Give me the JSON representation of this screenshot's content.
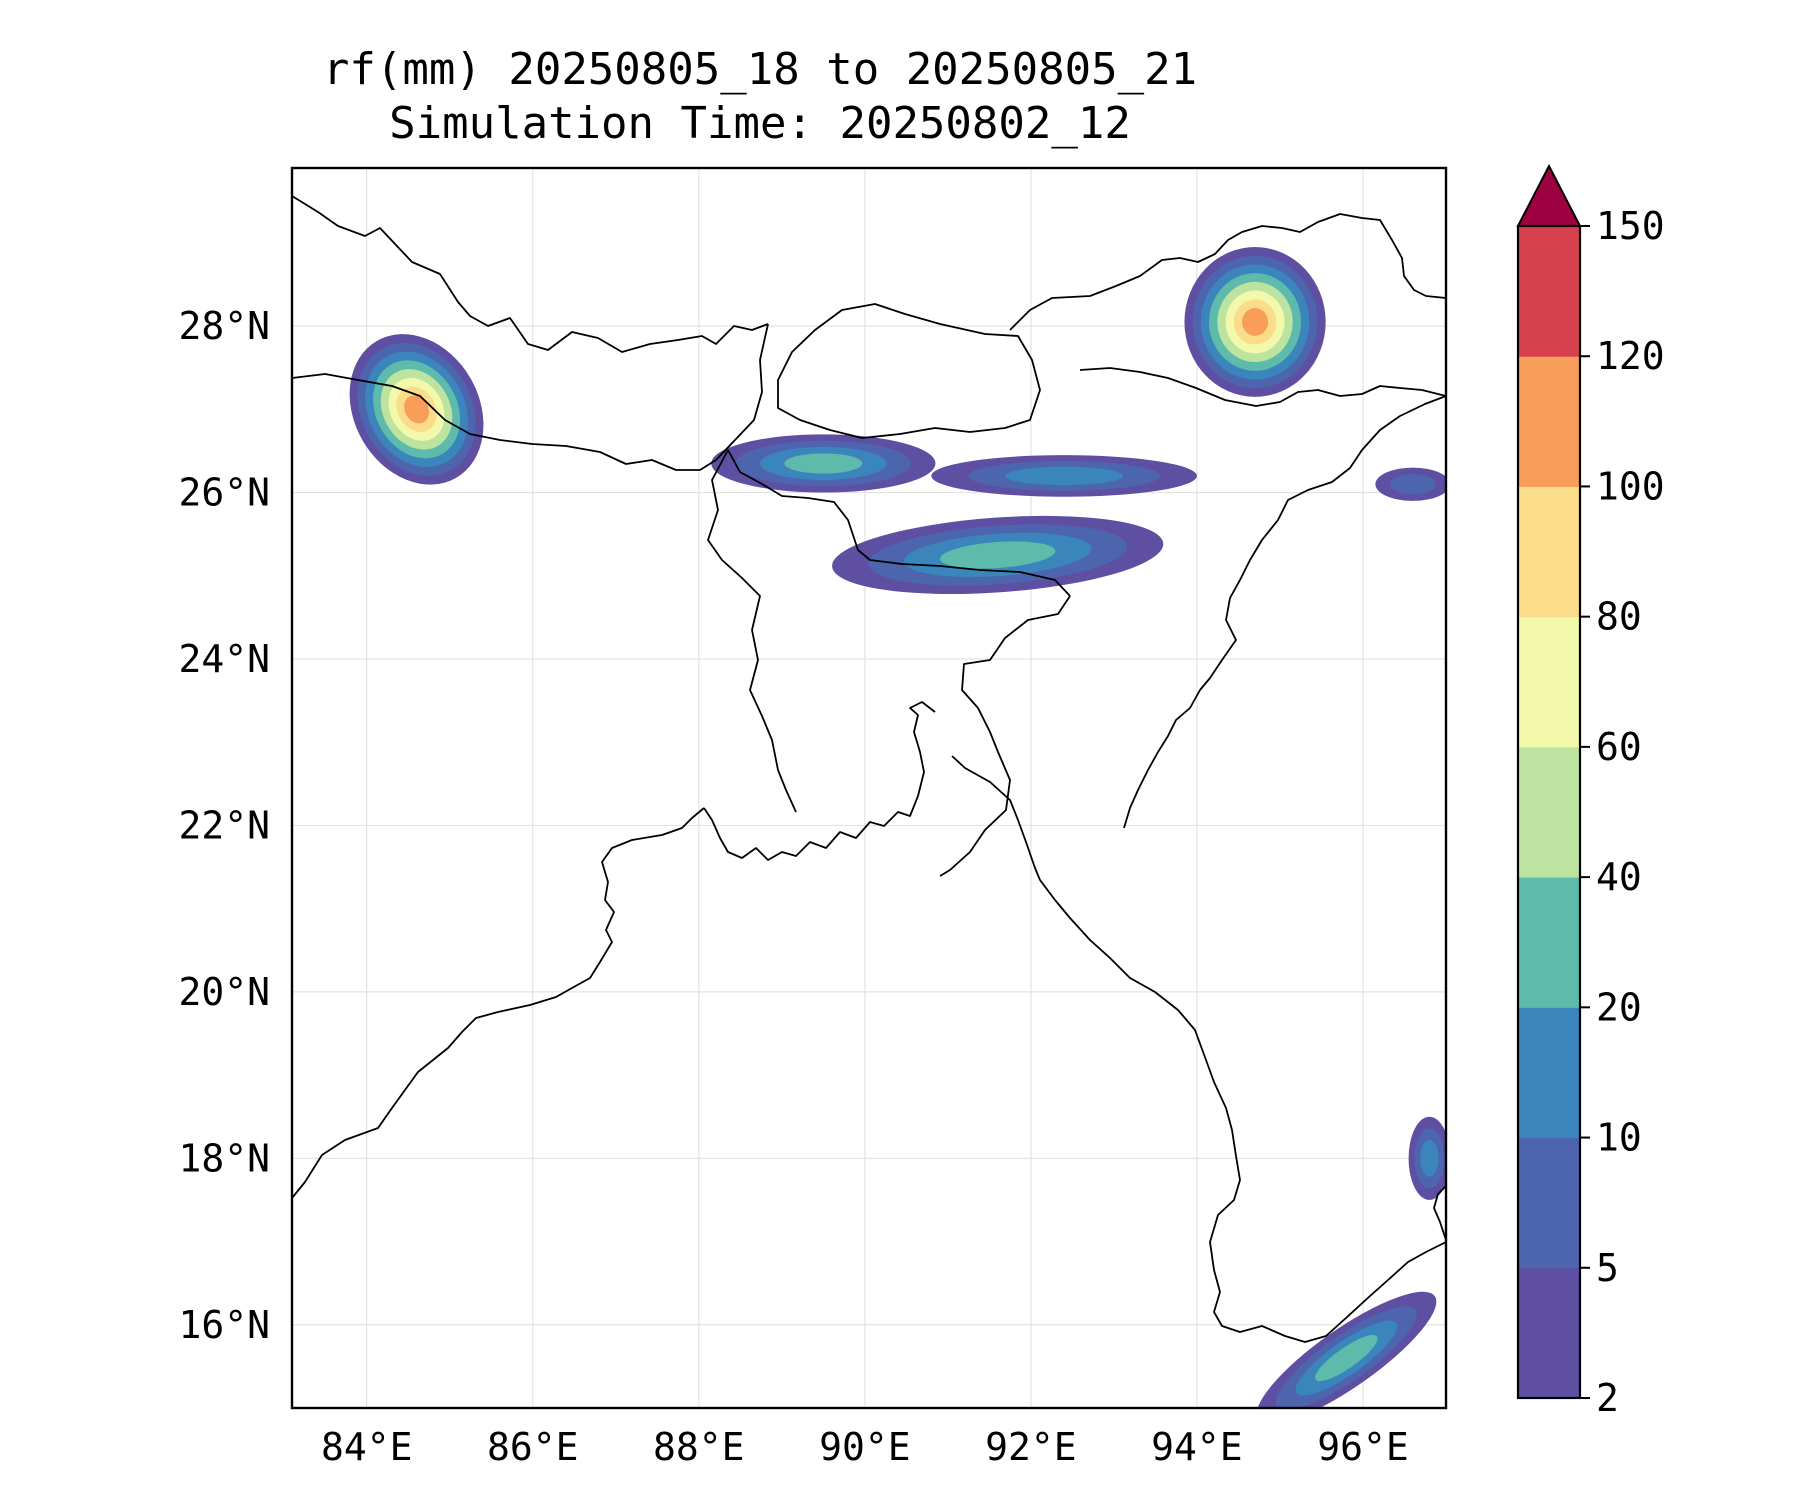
{
  "title": {
    "line1": "rf(mm) 20250805_18 to 20250805_21",
    "line2": "Simulation Time: 20250802_12"
  },
  "map": {
    "lon_range": [
      83.1,
      97.0
    ],
    "lat_range": [
      15.0,
      29.9
    ],
    "gridlines": true,
    "x_ticks": [
      {
        "value": 84,
        "label": "84°E"
      },
      {
        "value": 86,
        "label": "86°E"
      },
      {
        "value": 88,
        "label": "88°E"
      },
      {
        "value": 90,
        "label": "90°E"
      },
      {
        "value": 92,
        "label": "92°E"
      },
      {
        "value": 94,
        "label": "94°E"
      },
      {
        "value": 96,
        "label": "96°E"
      }
    ],
    "y_ticks": [
      {
        "value": 16,
        "label": "16°N"
      },
      {
        "value": 18,
        "label": "18°N"
      },
      {
        "value": 20,
        "label": "20°N"
      },
      {
        "value": 22,
        "label": "22°N"
      },
      {
        "value": 24,
        "label": "24°N"
      },
      {
        "value": 26,
        "label": "26°N"
      },
      {
        "value": 28,
        "label": "28°N"
      }
    ]
  },
  "colorbar": {
    "levels": [
      "2",
      "5",
      "10",
      "20",
      "40",
      "60",
      "80",
      "100",
      "120",
      "150"
    ],
    "colors": [
      "#5e4fa2",
      "#4d65ae",
      "#3a86bc",
      "#5ebaab",
      "#bce3a0",
      "#f3f9ab",
      "#fbdc8a",
      "#f89e5a",
      "#d7404d"
    ],
    "extend_color": "#9e0142",
    "extend": "max"
  },
  "rain_cells": [
    {
      "id": "nepal-west",
      "lon": 84.6,
      "lat": 27.0,
      "rx": 0.75,
      "ry": 0.95,
      "rot": -30,
      "max": 120
    },
    {
      "id": "bhutan-north",
      "lon": 89.5,
      "lat": 26.35,
      "rx": 1.35,
      "ry": 0.35,
      "rot": 0,
      "max": 40
    },
    {
      "id": "meghalaya",
      "lon": 91.6,
      "lat": 25.25,
      "rx": 2.0,
      "ry": 0.45,
      "rot": -4,
      "max": 40
    },
    {
      "id": "assam-band",
      "lon": 92.4,
      "lat": 26.2,
      "rx": 1.6,
      "ry": 0.25,
      "rot": 0,
      "max": 20
    },
    {
      "id": "arunachal",
      "lon": 94.7,
      "lat": 28.05,
      "rx": 0.85,
      "ry": 0.9,
      "rot": 0,
      "max": 120
    },
    {
      "id": "east-border",
      "lon": 96.6,
      "lat": 26.1,
      "rx": 0.45,
      "ry": 0.2,
      "rot": 0,
      "max": 10
    },
    {
      "id": "myanmar-coast",
      "lon": 95.8,
      "lat": 15.6,
      "rx": 1.3,
      "ry": 0.35,
      "rot": -35,
      "max": 40
    },
    {
      "id": "myanmar-east",
      "lon": 96.8,
      "lat": 18.0,
      "rx": 0.25,
      "ry": 0.5,
      "rot": 0,
      "max": 20
    }
  ]
}
